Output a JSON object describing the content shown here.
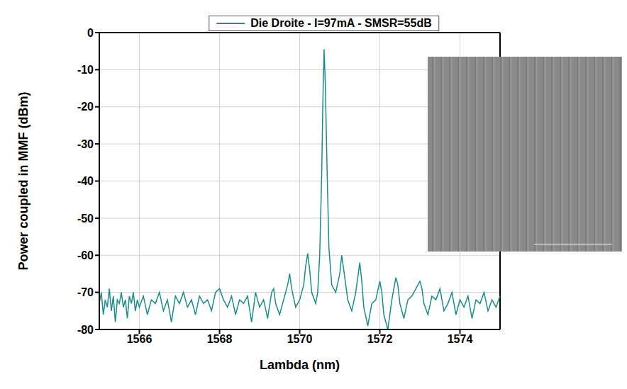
{
  "chart_data": {
    "type": "line",
    "x_label": "Lambda (nm)",
    "y_label": "Power coupled in MMF (dBm)",
    "legend": "top",
    "grid": true,
    "xlim": [
      1565,
      1575
    ],
    "xticks": [
      1566,
      1568,
      1570,
      1572,
      1574
    ],
    "ylim": [
      -80,
      0
    ],
    "yticks": [
      -80,
      -70,
      -60,
      -50,
      -40,
      -30,
      -20,
      -10,
      0
    ],
    "x": [
      1565.0,
      1565.05,
      1565.1,
      1565.15,
      1565.2,
      1565.25,
      1565.3,
      1565.35,
      1565.4,
      1565.45,
      1565.5,
      1565.55,
      1565.6,
      1565.65,
      1565.7,
      1565.75,
      1565.8,
      1565.85,
      1565.9,
      1565.95,
      1566.0,
      1566.1,
      1566.2,
      1566.3,
      1566.4,
      1566.5,
      1566.6,
      1566.7,
      1566.8,
      1566.9,
      1567.0,
      1567.1,
      1567.2,
      1567.3,
      1567.4,
      1567.5,
      1567.6,
      1567.7,
      1567.8,
      1567.9,
      1568.0,
      1568.1,
      1568.2,
      1568.3,
      1568.4,
      1568.5,
      1568.6,
      1568.7,
      1568.8,
      1568.9,
      1569.0,
      1569.1,
      1569.2,
      1569.3,
      1569.35,
      1569.4,
      1569.5,
      1569.6,
      1569.7,
      1569.75,
      1569.8,
      1569.9,
      1570.0,
      1570.1,
      1570.15,
      1570.2,
      1570.25,
      1570.3,
      1570.4,
      1570.45,
      1570.5,
      1570.55,
      1570.58,
      1570.61,
      1570.64,
      1570.68,
      1570.73,
      1570.8,
      1570.9,
      1571.0,
      1571.05,
      1571.1,
      1571.2,
      1571.3,
      1571.4,
      1571.5,
      1571.55,
      1571.6,
      1571.7,
      1571.8,
      1571.9,
      1572.0,
      1572.05,
      1572.1,
      1572.2,
      1572.3,
      1572.4,
      1572.45,
      1572.5,
      1572.6,
      1572.7,
      1572.8,
      1572.9,
      1573.0,
      1573.05,
      1573.1,
      1573.2,
      1573.3,
      1573.4,
      1573.5,
      1573.6,
      1573.7,
      1573.8,
      1573.9,
      1574.0,
      1574.1,
      1574.2,
      1574.3,
      1574.4,
      1574.5,
      1574.6,
      1574.7,
      1574.8,
      1574.9,
      1575.0
    ],
    "series": [
      {
        "name": "Die Droite - I=97mA - SMSR=55dB",
        "color": "#1a8c8c",
        "values": [
          -73,
          -70,
          -76,
          -72,
          -74,
          -69,
          -75,
          -71,
          -78,
          -72,
          -73,
          -70,
          -74,
          -72,
          -77,
          -71,
          -73,
          -70,
          -75,
          -72,
          -74,
          -71,
          -76,
          -72,
          -73,
          -70,
          -75,
          -72,
          -78,
          -71,
          -73,
          -70,
          -74,
          -72,
          -76,
          -71,
          -73,
          -72,
          -75,
          -70,
          -69,
          -72,
          -74,
          -71,
          -76,
          -72,
          -73,
          -71,
          -78,
          -70,
          -74,
          -72,
          -77,
          -70,
          -69,
          -73,
          -76,
          -72,
          -68,
          -65,
          -69,
          -74,
          -72,
          -68,
          -63,
          -59.5,
          -64,
          -70,
          -73,
          -70,
          -60,
          -38,
          -18,
          -4.5,
          -14,
          -35,
          -58,
          -68,
          -70,
          -65,
          -60,
          -64,
          -72,
          -75,
          -70,
          -62,
          -67,
          -74,
          -79,
          -73,
          -72,
          -67,
          -70,
          -76,
          -80,
          -72,
          -66,
          -68,
          -73,
          -77,
          -72,
          -71,
          -69,
          -67,
          -69,
          -73,
          -76,
          -71,
          -72,
          -69,
          -75,
          -73,
          -70,
          -76,
          -72,
          -74,
          -71,
          -77,
          -72,
          -73,
          -70,
          -75,
          -72,
          -74,
          -71
        ]
      }
    ]
  }
}
